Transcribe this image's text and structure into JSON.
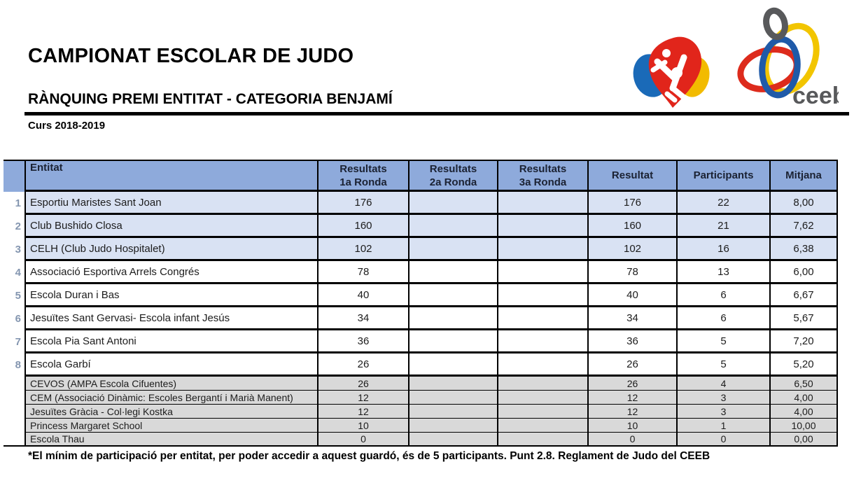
{
  "page": {
    "title": "CAMPIONAT ESCOLAR DE JUDO",
    "subtitle": "RÀNQUING PREMI ENTITAT - CATEGORIA BENJAMÍ",
    "season": "Curs 2018-2019",
    "footnote": "*El mínim de participació per entitat, per poder accedir a aquest guardó, és de 5 participants. Punt 2.8. Reglament de Judo del CEEB"
  },
  "logos": {
    "judo_name": "judo-heart-logo",
    "ceeb_name": "ceeb-logo",
    "ceeb_text": "ceeb"
  },
  "colors": {
    "header_bg": "#8EAADB",
    "highlight_row_bg": "#D9E2F3",
    "gray_row_bg": "#D9D9D9",
    "rank_number": "#8496B0",
    "border": "#000000",
    "judo_blue": "#1A6AB8",
    "judo_red": "#E1251B",
    "judo_yellow": "#F2BB00",
    "ceeb_gray": "#58595B",
    "ceeb_yellow": "#F2C500",
    "ceeb_red": "#DD2B1C",
    "ceeb_blue": "#1F5AA8"
  },
  "table": {
    "columns": [
      {
        "key": "entitat",
        "label": "Entitat",
        "lines": [
          "Entitat"
        ]
      },
      {
        "key": "r1",
        "label": "Resultats 1a Ronda",
        "lines": [
          "Resultats",
          "1a Ronda"
        ]
      },
      {
        "key": "r2",
        "label": "Resultats 2a Ronda",
        "lines": [
          "Resultats",
          "2a Ronda"
        ]
      },
      {
        "key": "r3",
        "label": "Resultats 3a Ronda",
        "lines": [
          "Resultats",
          "3a Ronda"
        ]
      },
      {
        "key": "total",
        "label": "Resultat",
        "lines": [
          "Resultat"
        ]
      },
      {
        "key": "participants",
        "label": "Participants",
        "lines": [
          "Participants"
        ]
      },
      {
        "key": "mitjana",
        "label": "Mitjana",
        "lines": [
          "Mitjana"
        ]
      }
    ],
    "rows": [
      {
        "rank": "1",
        "entitat": "Esportiu Maristes Sant Joan",
        "r1": "176",
        "r2": "",
        "r3": "",
        "total": "176",
        "participants": "22",
        "mitjana": "8,00",
        "highlight": true
      },
      {
        "rank": "2",
        "entitat": "Club Bushido Closa",
        "r1": "160",
        "r2": "",
        "r3": "",
        "total": "160",
        "participants": "21",
        "mitjana": "7,62",
        "highlight": true
      },
      {
        "rank": "3",
        "entitat": "CELH (Club Judo Hospitalet)",
        "r1": "102",
        "r2": "",
        "r3": "",
        "total": "102",
        "participants": "16",
        "mitjana": "6,38",
        "highlight": true
      },
      {
        "rank": "4",
        "entitat": "Associació Esportiva Arrels Congrés",
        "r1": "78",
        "r2": "",
        "r3": "",
        "total": "78",
        "participants": "13",
        "mitjana": "6,00",
        "highlight": false
      },
      {
        "rank": "5",
        "entitat": "Escola Duran i Bas",
        "r1": "40",
        "r2": "",
        "r3": "",
        "total": "40",
        "participants": "6",
        "mitjana": "6,67",
        "highlight": false
      },
      {
        "rank": "6",
        "entitat": "Jesuïtes Sant Gervasi- Escola infant Jesús",
        "r1": "34",
        "r2": "",
        "r3": "",
        "total": "34",
        "participants": "6",
        "mitjana": "5,67",
        "highlight": false
      },
      {
        "rank": "7",
        "entitat": "Escola Pia Sant Antoni",
        "r1": "36",
        "r2": "",
        "r3": "",
        "total": "36",
        "participants": "5",
        "mitjana": "7,20",
        "highlight": false
      },
      {
        "rank": "8",
        "entitat": "Escola Garbí",
        "r1": "26",
        "r2": "",
        "r3": "",
        "total": "26",
        "participants": "5",
        "mitjana": "5,20",
        "highlight": false
      }
    ],
    "excluded_rows": [
      {
        "entitat": "CEVOS (AMPA Escola Cifuentes)",
        "r1": "26",
        "r2": "",
        "r3": "",
        "total": "26",
        "participants": "4",
        "mitjana": "6,50"
      },
      {
        "entitat": "CEM (Associació Dinàmic: Escoles Bergantí i Marià Manent)",
        "r1": "12",
        "r2": "",
        "r3": "",
        "total": "12",
        "participants": "3",
        "mitjana": "4,00"
      },
      {
        "entitat": "Jesuïtes Gràcia - Col·legi Kostka",
        "r1": "12",
        "r2": "",
        "r3": "",
        "total": "12",
        "participants": "3",
        "mitjana": "4,00"
      },
      {
        "entitat": "Princess Margaret School",
        "r1": "10",
        "r2": "",
        "r3": "",
        "total": "10",
        "participants": "1",
        "mitjana": "10,00"
      },
      {
        "entitat": "Escola Thau",
        "r1": "0",
        "r2": "",
        "r3": "",
        "total": "0",
        "participants": "0",
        "mitjana": "0,00"
      }
    ]
  }
}
